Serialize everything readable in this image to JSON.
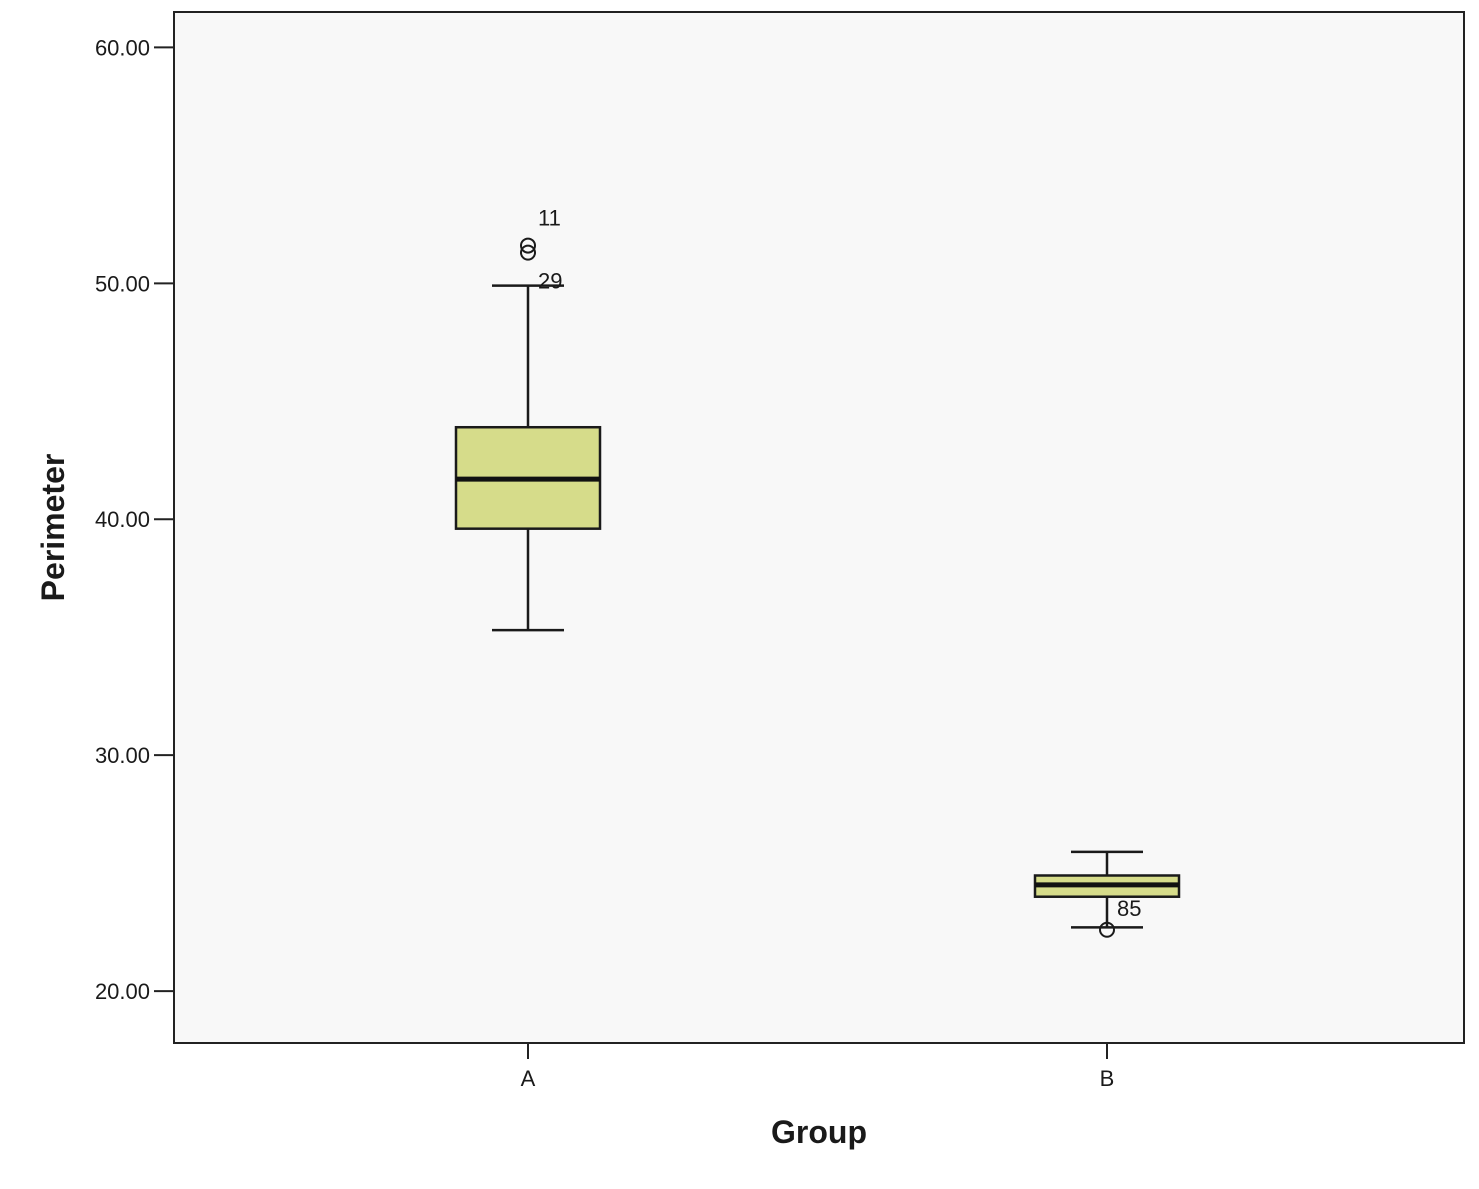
{
  "chart_data": {
    "type": "box",
    "title": "",
    "xlabel": "Group",
    "ylabel": "Perimeter",
    "ylim": [
      17.8,
      61.5
    ],
    "yticks": [
      {
        "value": 20,
        "label": "20.00"
      },
      {
        "value": 30,
        "label": "30.00"
      },
      {
        "value": 40,
        "label": "40.00"
      },
      {
        "value": 50,
        "label": "50.00"
      },
      {
        "value": 60,
        "label": "60.00"
      }
    ],
    "grid": false,
    "box_color": "#d6dc8a",
    "plot_background": "#f8f8f8",
    "categories": [
      "A",
      "B"
    ],
    "boxes": [
      {
        "category": "A",
        "whisker_low": 35.3,
        "q1": 39.6,
        "median": 41.7,
        "q3": 43.9,
        "whisker_high": 49.9,
        "outliers": [
          {
            "value": 51.6,
            "label": "11"
          },
          {
            "value": 51.3,
            "label": "29"
          }
        ]
      },
      {
        "category": "B",
        "whisker_low": 22.7,
        "q1": 24.0,
        "median": 24.5,
        "q3": 24.9,
        "whisker_high": 25.9,
        "outliers": [
          {
            "value": 22.6,
            "label": "85"
          }
        ]
      }
    ]
  }
}
